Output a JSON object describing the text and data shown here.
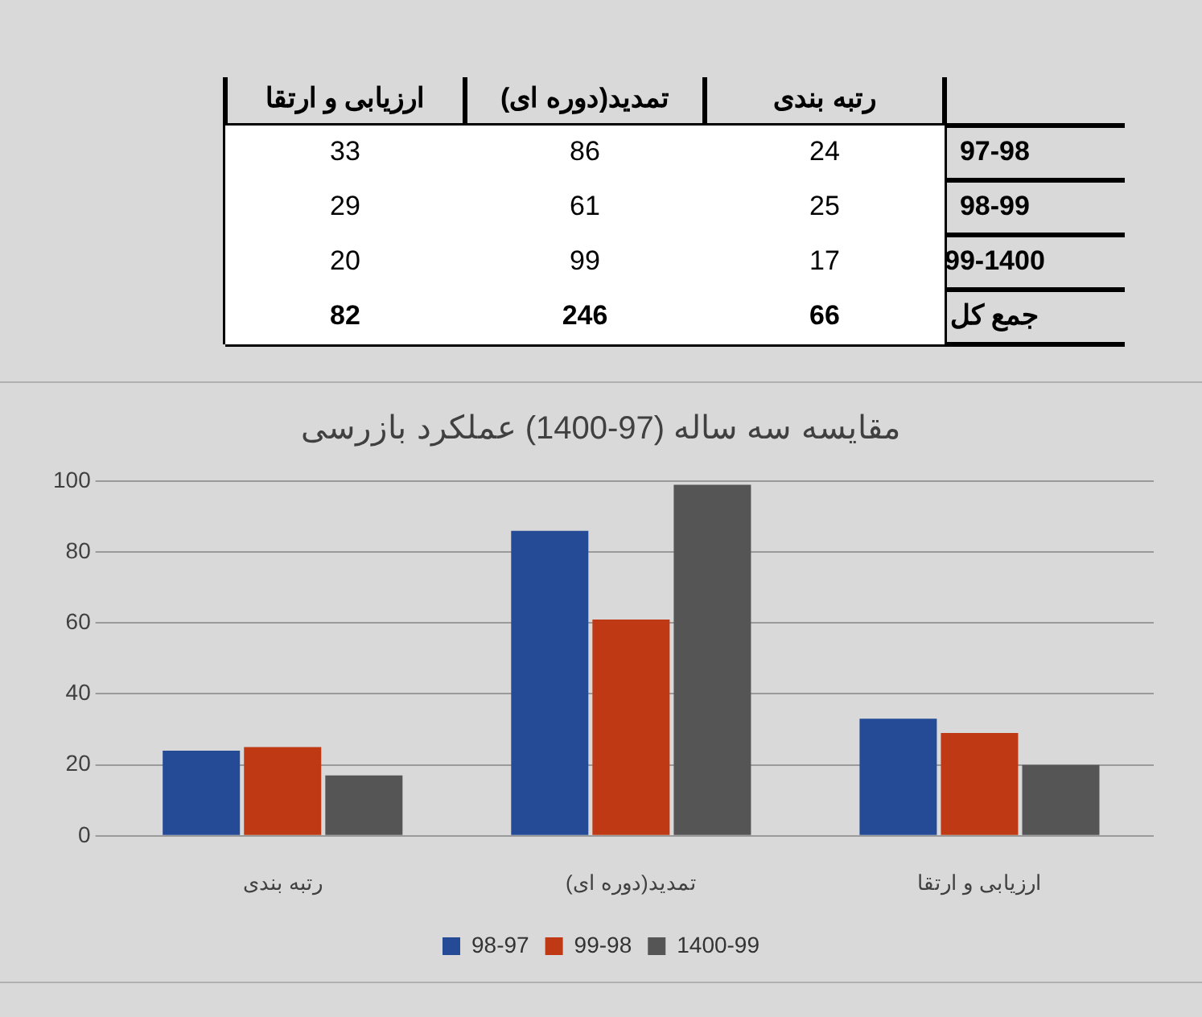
{
  "chart_data": [
    {
      "type": "heatmap",
      "categories": [
        "ارزیابی و ارتقا",
        "تمدید(دوره ای)",
        "رتبه بندی"
      ],
      "y_categories": [
        "97-98",
        "98-99",
        "99-1400",
        "جمع کل"
      ],
      "cells": [
        [
          33,
          86,
          24
        ],
        [
          29,
          61,
          25
        ],
        [
          20,
          99,
          17
        ],
        [
          82,
          246,
          66
        ]
      ],
      "data_labels": true
    },
    {
      "type": "bar",
      "title": "مقایسه سه ساله (97-1400) عملکرد بازرسی",
      "categories": [
        "رتبه بندی",
        "تمدید(دوره ای)",
        "ارزیابی و ارتقا"
      ],
      "series": [
        {
          "name": "98-97",
          "color": "#264b96",
          "values": [
            24,
            86,
            33
          ]
        },
        {
          "name": "99-98",
          "color": "#bf3a14",
          "values": [
            25,
            61,
            29
          ]
        },
        {
          "name": "1400-99",
          "color": "#555555",
          "values": [
            17,
            99,
            20
          ]
        }
      ],
      "ylim": [
        0,
        100
      ],
      "yticks": [
        0,
        20,
        40,
        60,
        80,
        100
      ],
      "grid": "y",
      "legend": "bottom"
    }
  ]
}
